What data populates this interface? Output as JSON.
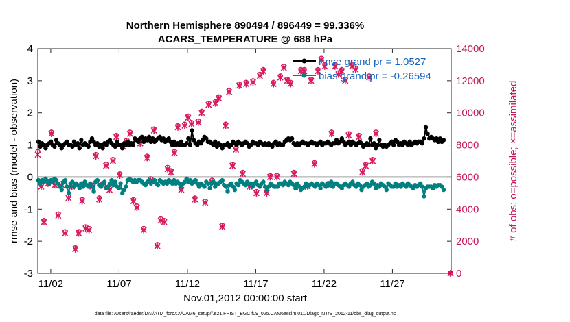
{
  "chart_data": {
    "type": "line",
    "title_line1": "Northern Hemisphere 890494 / 896449 = 99.336%",
    "title_line2": "ACARS_TEMPERATURE @ 688 hPa",
    "ylabel_left": "rmse and bias (model - observation)",
    "ylabel_right": "# of obs: o=possible; ×=assimilated",
    "xlabel": "Nov.01,2012 00:00:00 start",
    "footer": "data file: /Users/raeder/DAI/ATM_forcXX/CAM6_setup/f.e21.FHIST_BGC.f09_025.CAM6assim.011/Diags_NTrS_2012-11/obs_diag_output.nc",
    "x_range": [
      0.55,
      30.8
    ],
    "ylim_left": [
      -3,
      4
    ],
    "ylim_right": [
      0,
      14000
    ],
    "x_ticks": [
      {
        "v": 1.5,
        "label": "11/02"
      },
      {
        "v": 6.5,
        "label": "11/07"
      },
      {
        "v": 11.5,
        "label": "11/12"
      },
      {
        "v": 16.5,
        "label": "11/17"
      },
      {
        "v": 21.5,
        "label": "11/22"
      },
      {
        "v": 26.5,
        "label": "11/27"
      }
    ],
    "y_ticks_left": [
      -3,
      -2,
      -1,
      0,
      1,
      2,
      3,
      4
    ],
    "y_ticks_right": [
      0,
      2000,
      4000,
      6000,
      8000,
      10000,
      12000,
      14000
    ],
    "colors": {
      "rmse": "#000000",
      "bias": "#008080",
      "obs": "#d81b60",
      "zero_line": "#a0a0a0",
      "legend_text": "#1565c0"
    },
    "legend": [
      {
        "name": "rmse",
        "label": "rmse grand pr = 1.0527"
      },
      {
        "name": "bias",
        "label": "bias grand pr = -0.26594"
      }
    ],
    "series": [
      {
        "name": "rmse",
        "values": [
          1.1,
          0.95,
          1.05,
          1.0,
          0.9,
          1.0,
          1.05,
          1.1,
          1.0,
          0.95,
          1.15,
          1.05,
          1.0,
          0.9,
          1.0,
          1.05,
          1.1,
          1.0,
          1.0,
          0.95,
          1.1,
          1.0,
          1.05,
          0.9,
          1.15,
          1.0,
          1.05,
          1.0,
          0.95,
          1.1,
          1.2,
          1.1,
          1.0,
          1.05,
          0.95,
          1.0,
          0.9,
          1.05,
          1.0,
          1.1,
          1.15,
          1.05,
          1.0,
          0.95,
          1.1,
          1.0,
          1.0,
          0.9,
          1.05,
          1.0,
          1.1,
          1.0,
          1.05,
          1.0,
          1.2,
          1.15,
          1.1,
          1.2,
          1.25,
          1.1,
          1.2,
          1.15,
          1.25,
          1.1,
          1.2,
          1.1,
          1.15,
          1.2,
          1.25,
          1.15,
          1.2,
          1.1,
          1.15,
          1.2,
          1.1,
          1.0,
          1.1,
          1.0,
          1.05,
          1.0,
          1.1,
          1.0,
          1.0,
          1.05,
          1.2,
          1.0,
          1.45,
          1.15,
          1.05,
          1.0,
          1.1,
          1.05,
          1.15,
          1.25,
          1.2,
          1.1,
          1.1,
          1.05,
          1.0,
          1.1,
          0.95,
          1.05,
          1.0,
          0.9,
          1.0,
          1.0,
          1.05,
          0.95,
          1.0,
          1.1,
          1.05,
          1.0,
          1.1,
          1.05,
          1.0,
          1.05,
          1.1,
          1.05,
          0.95,
          1.0,
          1.1,
          1.05,
          1.05,
          1.0,
          1.1,
          1.05,
          1.0,
          1.05,
          1.0,
          1.05,
          1.0,
          0.95,
          1.05,
          1.1,
          1.0,
          1.05,
          1.0,
          1.0,
          1.1,
          1.15,
          1.2,
          1.15,
          1.2,
          1.05,
          1.0,
          1.05,
          1.0,
          1.05,
          1.1,
          1.05,
          1.05,
          1.0,
          1.05,
          1.1,
          1.05,
          1.05,
          1.0,
          1.05,
          1.1,
          1.0,
          1.05,
          1.05,
          1.1,
          1.05,
          1.0,
          1.05,
          1.05,
          1.15,
          1.05,
          1.1,
          1.2,
          1.1,
          1.0,
          1.05,
          1.1,
          1.0,
          1.1,
          1.05,
          1.0,
          1.05,
          1.1,
          1.05,
          0.95,
          1.0,
          1.05,
          1.0,
          1.2,
          1.0,
          1.05,
          0.9,
          1.0,
          1.15,
          1.0,
          0.95,
          1.0,
          0.95,
          1.0,
          1.05,
          1.1,
          1.0,
          1.15,
          1.1,
          1.0,
          1.05,
          1.0,
          1.1,
          1.05,
          1.0,
          1.1,
          1.0,
          1.05,
          1.1,
          1.05,
          1.1,
          1.1,
          1.05,
          1.2,
          1.55,
          1.35,
          1.2,
          1.25,
          1.2,
          1.15,
          1.2,
          1.1,
          1.2,
          1.1,
          1.15
        ]
      },
      {
        "name": "bias",
        "values": [
          -0.1,
          -0.2,
          -0.1,
          -0.15,
          -0.05,
          -0.15,
          -0.2,
          -0.1,
          -0.15,
          -0.05,
          -0.1,
          -0.2,
          -0.3,
          -0.4,
          -0.15,
          -0.1,
          -0.3,
          -0.5,
          -0.2,
          -0.15,
          -0.3,
          -0.2,
          -0.25,
          -0.35,
          -0.2,
          -0.3,
          -0.15,
          -0.25,
          -0.3,
          -0.2,
          -0.3,
          -0.45,
          -0.15,
          -0.1,
          -0.25,
          -0.3,
          -0.2,
          -0.15,
          -0.35,
          -0.3,
          -0.2,
          -0.1,
          -0.25,
          -0.15,
          -0.3,
          -0.35,
          -0.2,
          -0.5,
          -0.4,
          -0.3,
          -0.1,
          -0.05,
          -0.1,
          -0.15,
          -0.1,
          -0.15,
          -0.1,
          -0.1,
          -0.15,
          -0.2,
          -0.25,
          -0.15,
          -0.1,
          -0.2,
          -0.15,
          -0.1,
          -0.2,
          -0.25,
          -0.1,
          -0.15,
          -0.2,
          -0.15,
          -0.2,
          -0.1,
          -0.15,
          -0.2,
          -0.1,
          -0.2,
          -0.15,
          -0.2,
          -0.3,
          -0.2,
          -0.15,
          -0.05,
          -0.15,
          -0.1,
          -0.2,
          -0.15,
          -0.1,
          -0.2,
          -0.3,
          -0.2,
          -0.25,
          -0.3,
          -0.15,
          -0.2,
          -0.35,
          -0.2,
          -0.15,
          -0.3,
          -0.2,
          -0.2,
          -0.15,
          -0.1,
          -0.25,
          -0.3,
          -0.45,
          -0.25,
          -0.2,
          -0.3,
          -0.4,
          -0.2,
          -0.25,
          -0.1,
          -0.15,
          -0.2,
          -0.25,
          -0.15,
          -0.2,
          -0.2,
          -0.3,
          -0.2,
          -0.15,
          -0.25,
          -0.3,
          -0.2,
          -0.15,
          -0.3,
          -0.4,
          -0.3,
          -0.2,
          -0.25,
          -0.3,
          -0.3,
          -0.3,
          -0.2,
          -0.2,
          -0.25,
          -0.15,
          -0.2,
          -0.25,
          -0.15,
          -0.2,
          -0.25,
          -0.35,
          -0.2,
          -0.3,
          -0.4,
          -0.35,
          -0.3,
          -0.2,
          -0.3,
          -0.25,
          -0.2,
          -0.25,
          -0.3,
          -0.2,
          -0.25,
          -0.35,
          -0.2,
          -0.25,
          -0.3,
          -0.2,
          -0.25,
          -0.15,
          -0.3,
          -0.2,
          -0.2,
          -0.25,
          -0.3,
          -0.35,
          -0.25,
          -0.2,
          -0.25,
          -0.3,
          -0.2,
          -0.15,
          -0.25,
          -0.3,
          -0.2,
          -0.25,
          -0.4,
          -0.3,
          -0.25,
          -0.2,
          -0.3,
          -0.25,
          -0.15,
          -0.2,
          -0.35,
          -0.25,
          -0.3,
          -0.2,
          -0.25,
          -0.3,
          -0.4,
          -0.2,
          -0.25,
          -0.3,
          -0.3,
          -0.2,
          -0.3,
          -0.25,
          -0.3,
          -0.2,
          -0.25,
          -0.3,
          -0.2,
          -0.25,
          -0.3,
          -0.35,
          -0.25,
          -0.3,
          -0.25,
          -0.2,
          -0.3,
          -0.6,
          -0.35,
          -0.3,
          -0.3,
          -0.3,
          -0.35,
          -0.25,
          -0.3,
          -0.25,
          -0.25,
          -0.3,
          -0.4
        ]
      },
      {
        "name": "obs_possible",
        "values": [
          7600,
          5500,
          3300,
          5700,
          8800,
          5600,
          3700,
          5600,
          2600,
          4800,
          5500,
          1600,
          2600,
          4600,
          2900,
          2800,
          5500,
          7400,
          4700,
          5600,
          6800,
          5300,
          7100,
          8600,
          6200,
          8000,
          8300,
          8800,
          4600,
          4200,
          8200,
          2800,
          7300,
          5900,
          9000,
          1800,
          3400,
          3300,
          6600,
          6400,
          7600,
          9200,
          5300,
          9300,
          9800,
          9400,
          4700,
          9500,
          10100,
          4500,
          10600,
          5800,
          10700,
          11000,
          3000,
          9300,
          11400,
          6800,
          7800,
          11800,
          6300,
          11900,
          5500,
          12000,
          5100,
          12400,
          12700,
          5100,
          6100,
          11900,
          6100,
          12300,
          12900,
          12100,
          11900,
          6300,
          5500,
          12700,
          12700,
          5500,
          12100,
          6900,
          12700,
          13400,
          13000,
          5600,
          8800,
          13000,
          12500,
          12700,
          12100,
          8700,
          13000,
          12800,
          8600,
          6400,
          6800,
          12300,
          7100,
          8800,
          -50
        ]
      },
      {
        "name": "obs_assimilated",
        "values": [
          7400,
          5400,
          3200,
          5600,
          8700,
          5500,
          3600,
          5500,
          2500,
          4700,
          5400,
          1500,
          2500,
          4500,
          2800,
          2700,
          5400,
          7300,
          4600,
          5500,
          6700,
          5200,
          7000,
          8500,
          6100,
          7900,
          8200,
          8700,
          4500,
          4100,
          8100,
          2700,
          7200,
          5800,
          8900,
          1700,
          3300,
          3200,
          6500,
          6300,
          7500,
          9100,
          5200,
          9200,
          9700,
          9300,
          4600,
          9400,
          10000,
          4400,
          10500,
          5700,
          10600,
          10900,
          2900,
          9200,
          11300,
          6700,
          7700,
          11700,
          6200,
          11800,
          5400,
          11900,
          5000,
          12300,
          12600,
          5000,
          6000,
          11800,
          6000,
          12200,
          12800,
          12000,
          11800,
          6200,
          5400,
          12600,
          12600,
          5400,
          12000,
          6800,
          12600,
          13300,
          12900,
          5500,
          8700,
          12900,
          12400,
          12600,
          12000,
          8600,
          12900,
          12700,
          8500,
          6300,
          6700,
          12200,
          7000,
          8700,
          0
        ]
      }
    ],
    "obs_x": [
      0.55,
      0.8,
      1.0,
      1.3,
      1.55,
      1.8,
      2.05,
      2.3,
      2.55,
      2.8,
      3.05,
      3.3,
      3.55,
      3.8,
      4.05,
      4.3,
      4.55,
      4.8,
      5.05,
      5.3,
      5.55,
      5.8,
      6.05,
      6.3,
      6.55,
      6.8,
      7.05,
      7.3,
      7.55,
      7.8,
      8.05,
      8.3,
      8.55,
      8.8,
      9.05,
      9.3,
      9.55,
      9.8,
      10.05,
      10.3,
      10.55,
      10.8,
      11.05,
      11.3,
      11.55,
      11.8,
      12.05,
      12.3,
      12.55,
      12.8,
      13.05,
      13.3,
      13.55,
      13.8,
      14.05,
      14.3,
      14.55,
      14.8,
      15.05,
      15.3,
      15.55,
      15.8,
      16.05,
      16.3,
      16.55,
      16.8,
      17.05,
      17.3,
      17.55,
      17.8,
      18.05,
      18.3,
      18.55,
      18.8,
      19.05,
      19.3,
      19.55,
      19.8,
      20.05,
      20.3,
      20.55,
      20.8,
      21.05,
      21.3,
      21.55,
      21.8,
      22.05,
      22.3,
      22.55,
      22.8,
      23.05,
      23.3,
      23.55,
      23.8,
      24.05,
      24.3,
      24.55,
      24.8,
      25.05,
      25.3,
      30.75
    ]
  }
}
